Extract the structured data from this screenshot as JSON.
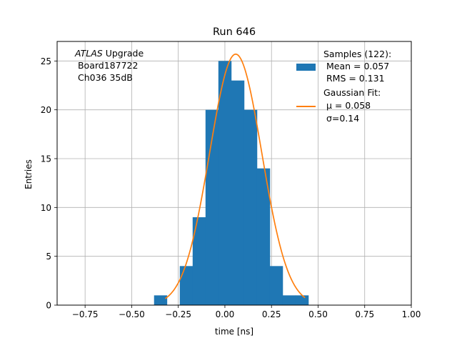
{
  "chart_data": {
    "type": "bar",
    "title": "Run 646",
    "xlabel": "time [ns]",
    "ylabel": "Entries",
    "xlim": [
      -0.9,
      1.0
    ],
    "ylim": [
      0,
      27
    ],
    "grid": true,
    "xticks": [
      -0.75,
      -0.5,
      -0.25,
      0.0,
      0.25,
      0.5,
      0.75,
      1.0
    ],
    "xtick_labels": [
      "−0.75",
      "−0.50",
      "−0.25",
      "0.00",
      "0.25",
      "0.50",
      "0.75",
      "1.00"
    ],
    "yticks": [
      0,
      5,
      10,
      15,
      20,
      25
    ],
    "ytick_labels": [
      "0",
      "5",
      "10",
      "15",
      "20",
      "25"
    ],
    "annotation": {
      "italic_part": "ATLAS",
      "line1_rest": " Upgrade",
      "line2": " Board187722",
      "line3": " Ch036 35dB"
    },
    "histogram": {
      "name": "Samples (122):",
      "color": "#1f77b4",
      "bins": [
        {
          "x0": -0.38,
          "x1": -0.311,
          "count": 1
        },
        {
          "x0": -0.311,
          "x1": -0.242,
          "count": 0
        },
        {
          "x0": -0.242,
          "x1": -0.173,
          "count": 4
        },
        {
          "x0": -0.173,
          "x1": -0.104,
          "count": 9
        },
        {
          "x0": -0.104,
          "x1": -0.035,
          "count": 20
        },
        {
          "x0": -0.035,
          "x1": 0.034,
          "count": 25
        },
        {
          "x0": 0.034,
          "x1": 0.103,
          "count": 23
        },
        {
          "x0": 0.103,
          "x1": 0.172,
          "count": 20
        },
        {
          "x0": 0.172,
          "x1": 0.241,
          "count": 14
        },
        {
          "x0": 0.241,
          "x1": 0.31,
          "count": 4
        },
        {
          "x0": 0.31,
          "x1": 0.379,
          "count": 1
        },
        {
          "x0": 0.379,
          "x1": 0.448,
          "count": 1
        }
      ]
    },
    "fit": {
      "name": "Gaussian Fit:",
      "color": "#ff7f0e",
      "mu": 0.058,
      "sigma": 0.14,
      "amplitude": 25.7,
      "x_range": [
        -0.32,
        0.43
      ]
    },
    "legend": {
      "position": "top-right",
      "samples_lines": [
        "Samples (122):",
        " Mean = 0.057",
        " RMS = 0.131"
      ],
      "fit_lines": [
        "Gaussian Fit:",
        " μ = 0.058",
        " σ=0.14"
      ]
    }
  }
}
